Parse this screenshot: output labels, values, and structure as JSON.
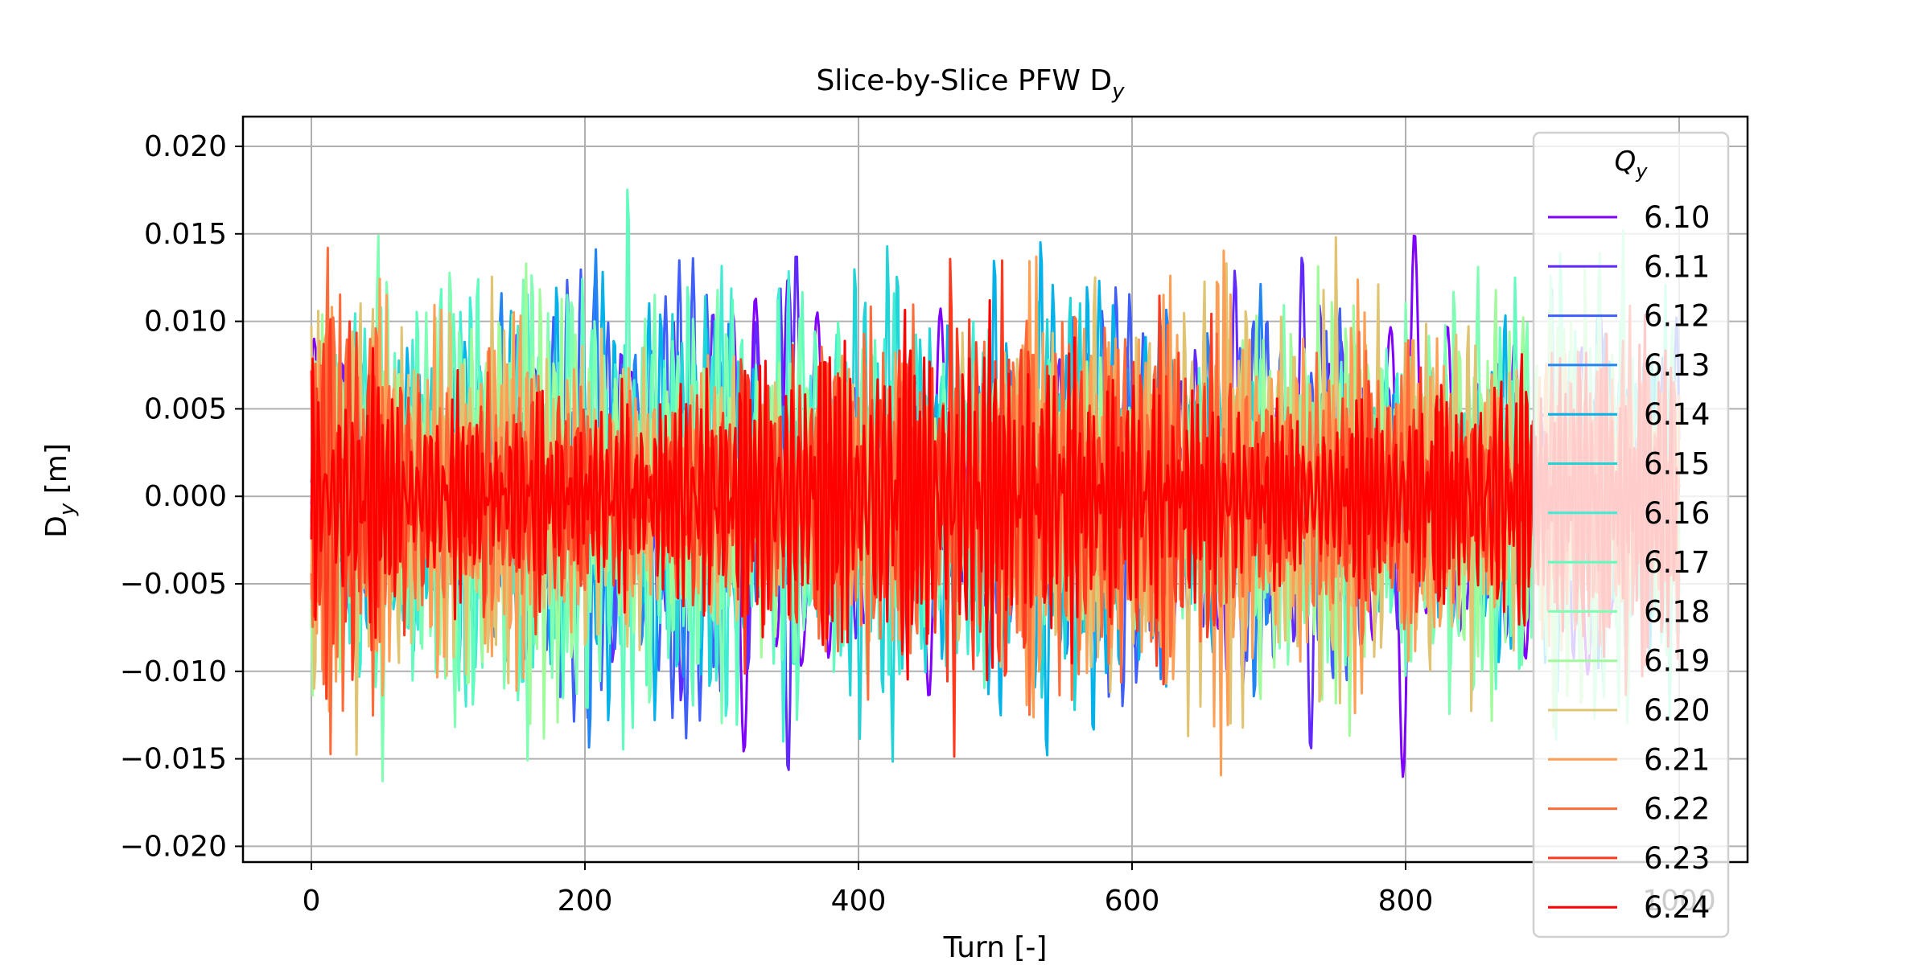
{
  "chart_data": {
    "type": "line",
    "title": "Slice-by-Slice PFW D",
    "title_subscript": "y",
    "xlabel": "Turn [-]",
    "ylabel": "D",
    "ylabel_subscript": "y",
    "ylabel_unit": " [m]",
    "xlim": [
      -50,
      1050
    ],
    "ylim": [
      -0.0209,
      0.0217
    ],
    "xticks": [
      0,
      200,
      400,
      600,
      800,
      1000
    ],
    "xtick_labels": [
      "0",
      "200",
      "400",
      "600",
      "800",
      "1000"
    ],
    "yticks": [
      0.02,
      0.015,
      0.01,
      0.005,
      0.0,
      -0.005,
      -0.01,
      -0.015,
      -0.02
    ],
    "ytick_labels": [
      "0.020",
      "0.015",
      "0.010",
      "0.005",
      "0.000",
      "−0.005",
      "−0.010",
      "−0.015",
      "−0.020"
    ],
    "grid": true,
    "legend": {
      "title": "Q",
      "title_subscript": "y",
      "placement": "right",
      "entries": [
        "6.10",
        "6.11",
        "6.12",
        "6.13",
        "6.14",
        "6.15",
        "6.16",
        "6.17",
        "6.18",
        "6.19",
        "6.20",
        "6.21",
        "6.22",
        "6.23",
        "6.24"
      ]
    },
    "x_range": [
      0,
      1000
    ],
    "series": [
      {
        "name": "6.10",
        "color": "#8000ff",
        "amplitude": 0.0095,
        "frequency": 0.06
      },
      {
        "name": "6.11",
        "color": "#6129fe",
        "amplitude": 0.0095,
        "frequency": 0.07
      },
      {
        "name": "6.12",
        "color": "#3f5efb",
        "amplitude": 0.0095,
        "frequency": 0.08
      },
      {
        "name": "6.13",
        "color": "#2186f3",
        "amplitude": 0.0085,
        "frequency": 0.09
      },
      {
        "name": "6.14",
        "color": "#02b2e9",
        "amplitude": 0.0095,
        "frequency": 0.1
      },
      {
        "name": "6.15",
        "color": "#21d4d8",
        "amplitude": 0.0085,
        "frequency": 0.11
      },
      {
        "name": "6.16",
        "color": "#40ecd3",
        "amplitude": 0.009,
        "frequency": 0.12
      },
      {
        "name": "6.17",
        "color": "#61fcbe",
        "amplitude": 0.01,
        "frequency": 0.13
      },
      {
        "name": "6.18",
        "color": "#80ffb4",
        "amplitude": 0.0095,
        "frequency": 0.14
      },
      {
        "name": "6.19",
        "color": "#a0fb9a",
        "amplitude": 0.009,
        "frequency": 0.15
      },
      {
        "name": "6.20",
        "color": "#e0c472",
        "amplitude": 0.0095,
        "frequency": 0.16
      },
      {
        "name": "6.21",
        "color": "#ff9f55",
        "amplitude": 0.0095,
        "frequency": 0.17
      },
      {
        "name": "6.22",
        "color": "#ff6c3a",
        "amplitude": 0.009,
        "frequency": 0.18
      },
      {
        "name": "6.23",
        "color": "#ff3a1f",
        "amplitude": 0.0085,
        "frequency": 0.19
      },
      {
        "name": "6.24",
        "color": "#ff0000",
        "amplitude": 0.008,
        "frequency": 0.2
      }
    ]
  }
}
